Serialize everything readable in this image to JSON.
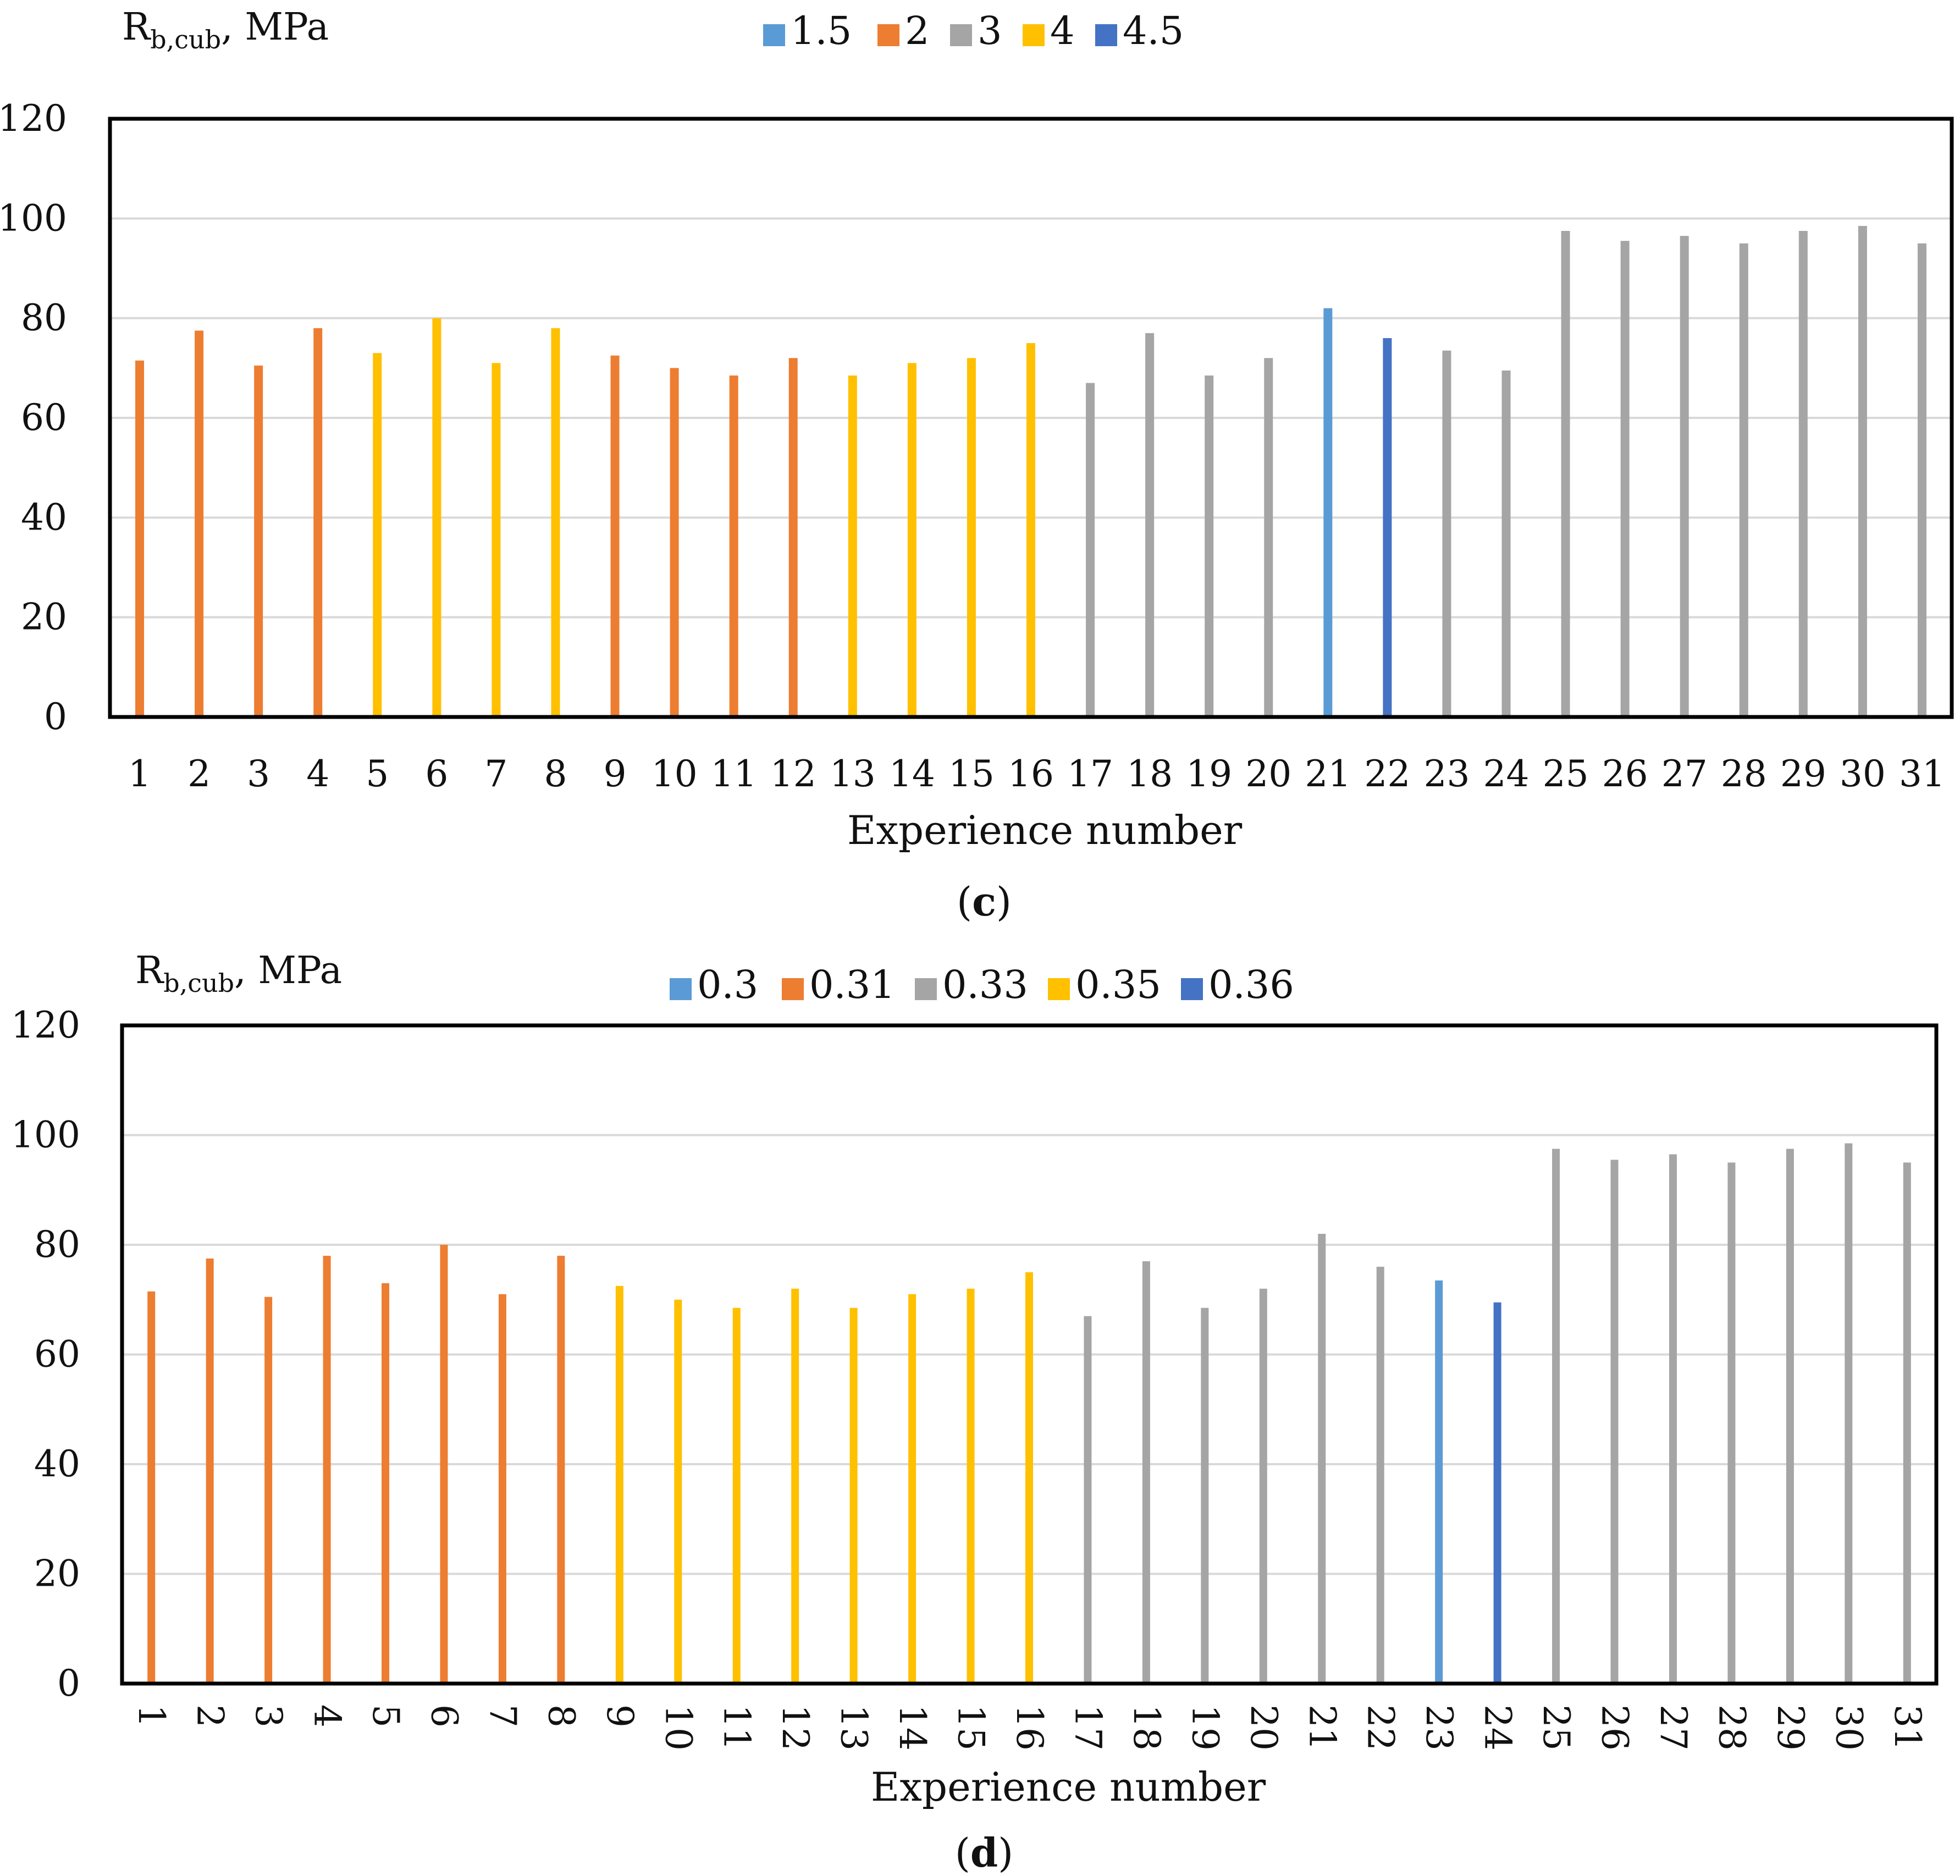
{
  "charts": [
    {
      "panel_label": "(c)",
      "panel_letter": "c",
      "y_axis_label_main": "R",
      "y_axis_label_sub": "b,cub",
      "y_axis_label_rest": ", MPa",
      "legend": [
        {
          "label": "1.5",
          "color": "#5B9BD5"
        },
        {
          "label": "2",
          "color": "#ED7D31"
        },
        {
          "label": "3",
          "color": "#A5A5A5"
        },
        {
          "label": "4",
          "color": "#FFC000"
        },
        {
          "label": "4.5",
          "color": "#4472C4"
        }
      ]
    },
    {
      "panel_label": "(d)",
      "panel_letter": "d",
      "y_axis_label_main": "R",
      "y_axis_label_sub": "b,cub",
      "y_axis_label_rest": ", MPa",
      "legend": [
        {
          "label": "0.3",
          "color": "#5B9BD5"
        },
        {
          "label": "0.31",
          "color": "#ED7D31"
        },
        {
          "label": "0.33",
          "color": "#A5A5A5"
        },
        {
          "label": "0.35",
          "color": "#FFC000"
        },
        {
          "label": "0.36",
          "color": "#4472C4"
        }
      ]
    }
  ],
  "chart_data": [
    {
      "type": "bar",
      "title": "",
      "xlabel": "Experience number",
      "ylabel": "Rb,cub, MPa",
      "ylim": [
        0,
        120
      ],
      "yticks": [
        0,
        20,
        40,
        60,
        80,
        100,
        120
      ],
      "categories": [
        "1",
        "2",
        "3",
        "4",
        "5",
        "6",
        "7",
        "8",
        "9",
        "10",
        "11",
        "12",
        "13",
        "14",
        "15",
        "16",
        "17",
        "18",
        "19",
        "20",
        "21",
        "22",
        "23",
        "24",
        "25",
        "26",
        "27",
        "28",
        "29",
        "30",
        "31"
      ],
      "series": [
        {
          "name": "1.5",
          "color": "#5B9BD5",
          "values": [
            null,
            null,
            null,
            null,
            null,
            null,
            null,
            null,
            null,
            null,
            null,
            null,
            null,
            null,
            null,
            null,
            null,
            null,
            null,
            null,
            82,
            null,
            null,
            null,
            null,
            null,
            null,
            null,
            null,
            null,
            null
          ]
        },
        {
          "name": "2",
          "color": "#ED7D31",
          "values": [
            71.5,
            77.5,
            70.5,
            78,
            null,
            null,
            null,
            null,
            72.5,
            70,
            68.5,
            72,
            null,
            null,
            null,
            null,
            null,
            null,
            null,
            null,
            null,
            null,
            null,
            null,
            null,
            null,
            null,
            null,
            null,
            null,
            null
          ]
        },
        {
          "name": "3",
          "color": "#A5A5A5",
          "values": [
            null,
            null,
            null,
            null,
            null,
            null,
            null,
            null,
            null,
            null,
            null,
            null,
            null,
            null,
            null,
            null,
            67,
            77,
            68.5,
            72,
            null,
            null,
            73.5,
            69.5,
            97.5,
            95.5,
            96.5,
            95,
            97.5,
            98.5,
            95
          ]
        },
        {
          "name": "4",
          "color": "#FFC000",
          "values": [
            null,
            null,
            null,
            null,
            73,
            80,
            71,
            78,
            null,
            null,
            null,
            null,
            68.5,
            71,
            72,
            75,
            null,
            null,
            null,
            null,
            null,
            null,
            null,
            null,
            null,
            null,
            null,
            null,
            null,
            null,
            null
          ]
        },
        {
          "name": "4.5",
          "color": "#4472C4",
          "values": [
            null,
            null,
            null,
            null,
            null,
            null,
            null,
            null,
            null,
            null,
            null,
            null,
            null,
            null,
            null,
            null,
            null,
            null,
            null,
            null,
            null,
            76,
            null,
            null,
            null,
            null,
            null,
            null,
            null,
            null,
            null
          ]
        }
      ],
      "legend_position": "top-center",
      "grid": true,
      "x_tick_rotation": 0
    },
    {
      "type": "bar",
      "title": "",
      "xlabel": "Experience number",
      "ylabel": "Rb,cub, MPa",
      "ylim": [
        0,
        120
      ],
      "yticks": [
        0,
        20,
        40,
        60,
        80,
        100,
        120
      ],
      "categories": [
        "1",
        "2",
        "3",
        "4",
        "5",
        "6",
        "7",
        "8",
        "9",
        "10",
        "11",
        "12",
        "13",
        "14",
        "15",
        "16",
        "17",
        "18",
        "19",
        "20",
        "21",
        "22",
        "23",
        "24",
        "25",
        "26",
        "27",
        "28",
        "29",
        "30",
        "31"
      ],
      "series": [
        {
          "name": "0.3",
          "color": "#5B9BD5",
          "values": [
            null,
            null,
            null,
            null,
            null,
            null,
            null,
            null,
            null,
            null,
            null,
            null,
            null,
            null,
            null,
            null,
            null,
            null,
            null,
            null,
            null,
            null,
            73.5,
            null,
            null,
            null,
            null,
            null,
            null,
            null,
            null
          ]
        },
        {
          "name": "0.31",
          "color": "#ED7D31",
          "values": [
            71.5,
            77.5,
            70.5,
            78,
            73,
            80,
            71,
            78,
            null,
            null,
            null,
            null,
            null,
            null,
            null,
            null,
            null,
            null,
            null,
            null,
            null,
            null,
            null,
            null,
            null,
            null,
            null,
            null,
            null,
            null,
            null
          ]
        },
        {
          "name": "0.33",
          "color": "#A5A5A5",
          "values": [
            null,
            null,
            null,
            null,
            null,
            null,
            null,
            null,
            null,
            null,
            null,
            null,
            null,
            null,
            null,
            null,
            67,
            77,
            68.5,
            72,
            82,
            76,
            null,
            null,
            97.5,
            95.5,
            96.5,
            95,
            97.5,
            98.5,
            95
          ]
        },
        {
          "name": "0.35",
          "color": "#FFC000",
          "values": [
            null,
            null,
            null,
            null,
            null,
            null,
            null,
            null,
            72.5,
            70,
            68.5,
            72,
            68.5,
            71,
            72,
            75,
            null,
            null,
            null,
            null,
            null,
            null,
            null,
            null,
            null,
            null,
            null,
            null,
            null,
            null,
            null
          ]
        },
        {
          "name": "0.36",
          "color": "#4472C4",
          "values": [
            null,
            null,
            null,
            null,
            null,
            null,
            null,
            null,
            null,
            null,
            null,
            null,
            null,
            null,
            null,
            null,
            null,
            null,
            null,
            null,
            null,
            null,
            null,
            69.5,
            null,
            null,
            null,
            null,
            null,
            null,
            null
          ]
        }
      ],
      "legend_position": "top-center",
      "grid": true,
      "x_tick_rotation": 90
    }
  ]
}
